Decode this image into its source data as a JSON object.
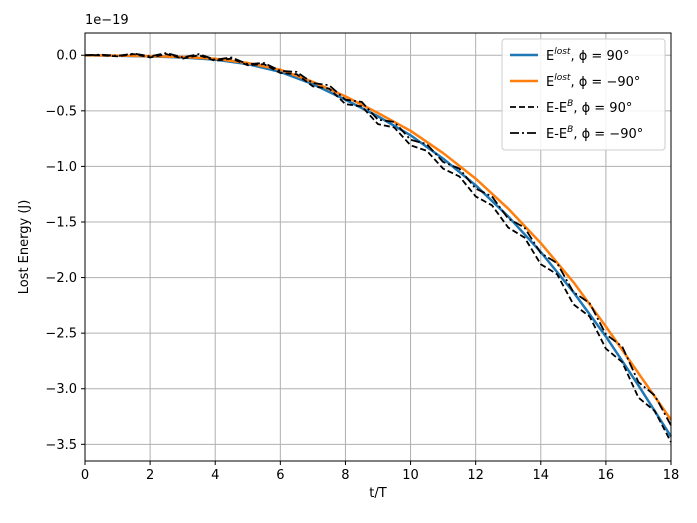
{
  "chart_data": {
    "type": "line",
    "xlabel": "t/T",
    "ylabel": "Lost Energy (J)",
    "offset_text": "1e−19",
    "xlim": [
      0,
      18
    ],
    "ylim": [
      -3.65,
      0.2
    ],
    "x_ticks": [
      0,
      2,
      4,
      6,
      8,
      10,
      12,
      14,
      16,
      18
    ],
    "x_tick_labels": [
      "0",
      "2",
      "4",
      "6",
      "8",
      "10",
      "12",
      "14",
      "16",
      "18"
    ],
    "y_ticks": [
      0.0,
      -0.5,
      -1.0,
      -1.5,
      -2.0,
      -2.5,
      -3.0,
      -3.5
    ],
    "y_tick_labels": [
      "0.0",
      "−0.5",
      "−1.0",
      "−1.5",
      "−2.0",
      "−2.5",
      "−3.0",
      "−3.5"
    ],
    "grid": true,
    "legend_position": "top-right",
    "series": [
      {
        "name_main": "E",
        "name_sup": "lost",
        "name_rest": ", ϕ = 90°",
        "color": "#1f77b4",
        "style": "solid",
        "x": [
          0,
          1,
          2,
          3,
          4,
          5,
          6,
          7,
          8,
          9,
          10,
          11,
          12,
          13,
          14,
          15,
          16,
          17,
          18
        ],
        "y": [
          0,
          -0.005,
          -0.01,
          -0.02,
          -0.04,
          -0.08,
          -0.15,
          -0.26,
          -0.4,
          -0.55,
          -0.72,
          -0.93,
          -1.17,
          -1.45,
          -1.77,
          -2.13,
          -2.53,
          -2.97,
          -3.43
        ]
      },
      {
        "name_main": "E",
        "name_sup": "lost",
        "name_rest": ", ϕ = −90°",
        "color": "#ff7f0e",
        "style": "solid",
        "x": [
          0,
          1,
          2,
          3,
          4,
          5,
          6,
          7,
          8,
          9,
          10,
          11,
          12,
          13,
          14,
          15,
          16,
          17,
          18
        ],
        "y": [
          0,
          -0.003,
          -0.008,
          -0.016,
          -0.032,
          -0.07,
          -0.13,
          -0.24,
          -0.37,
          -0.52,
          -0.68,
          -0.88,
          -1.11,
          -1.38,
          -1.69,
          -2.04,
          -2.44,
          -2.86,
          -3.28
        ]
      },
      {
        "name_main": "E-E",
        "name_sup": "B",
        "name_rest": ", ϕ = 90°",
        "color": "#000000",
        "style": "dashed",
        "x": [
          0,
          0.5,
          1,
          1.5,
          2,
          2.5,
          3,
          3.5,
          4,
          4.5,
          5,
          5.5,
          6,
          6.5,
          7,
          7.5,
          8,
          8.5,
          9,
          9.5,
          10,
          10.5,
          11,
          11.5,
          12,
          12.5,
          13,
          13.5,
          14,
          14.5,
          15,
          15.5,
          16,
          16.5,
          17,
          17.5,
          18
        ],
        "y": [
          0,
          0,
          -0.01,
          0.01,
          -0.02,
          0.01,
          -0.03,
          0.0,
          -0.05,
          -0.03,
          -0.09,
          -0.08,
          -0.16,
          -0.17,
          -0.28,
          -0.3,
          -0.44,
          -0.46,
          -0.62,
          -0.65,
          -0.81,
          -0.86,
          -1.02,
          -1.09,
          -1.27,
          -1.35,
          -1.55,
          -1.64,
          -1.88,
          -1.97,
          -2.24,
          -2.35,
          -2.64,
          -2.76,
          -3.08,
          -3.2,
          -3.48
        ]
      },
      {
        "name_main": "E-E",
        "name_sup": "B",
        "name_rest": ", ϕ = −90°",
        "color": "#000000",
        "style": "dashdot",
        "x": [
          0,
          0.5,
          1,
          1.5,
          2,
          2.5,
          3,
          3.5,
          4,
          4.5,
          5,
          5.5,
          6,
          6.5,
          7,
          7.5,
          8,
          8.5,
          9,
          9.5,
          10,
          10.5,
          11,
          11.5,
          12,
          12.5,
          13,
          13.5,
          14,
          14.5,
          15,
          15.5,
          16,
          16.5,
          17,
          17.5,
          18
        ],
        "y": [
          0,
          0.005,
          -0.005,
          0.015,
          -0.01,
          0.02,
          -0.02,
          0.01,
          -0.04,
          -0.02,
          -0.08,
          -0.07,
          -0.14,
          -0.15,
          -0.25,
          -0.27,
          -0.4,
          -0.42,
          -0.58,
          -0.6,
          -0.76,
          -0.8,
          -0.96,
          -1.02,
          -1.2,
          -1.27,
          -1.47,
          -1.55,
          -1.78,
          -1.87,
          -2.13,
          -2.23,
          -2.51,
          -2.62,
          -2.94,
          -3.06,
          -3.33
        ]
      }
    ]
  }
}
